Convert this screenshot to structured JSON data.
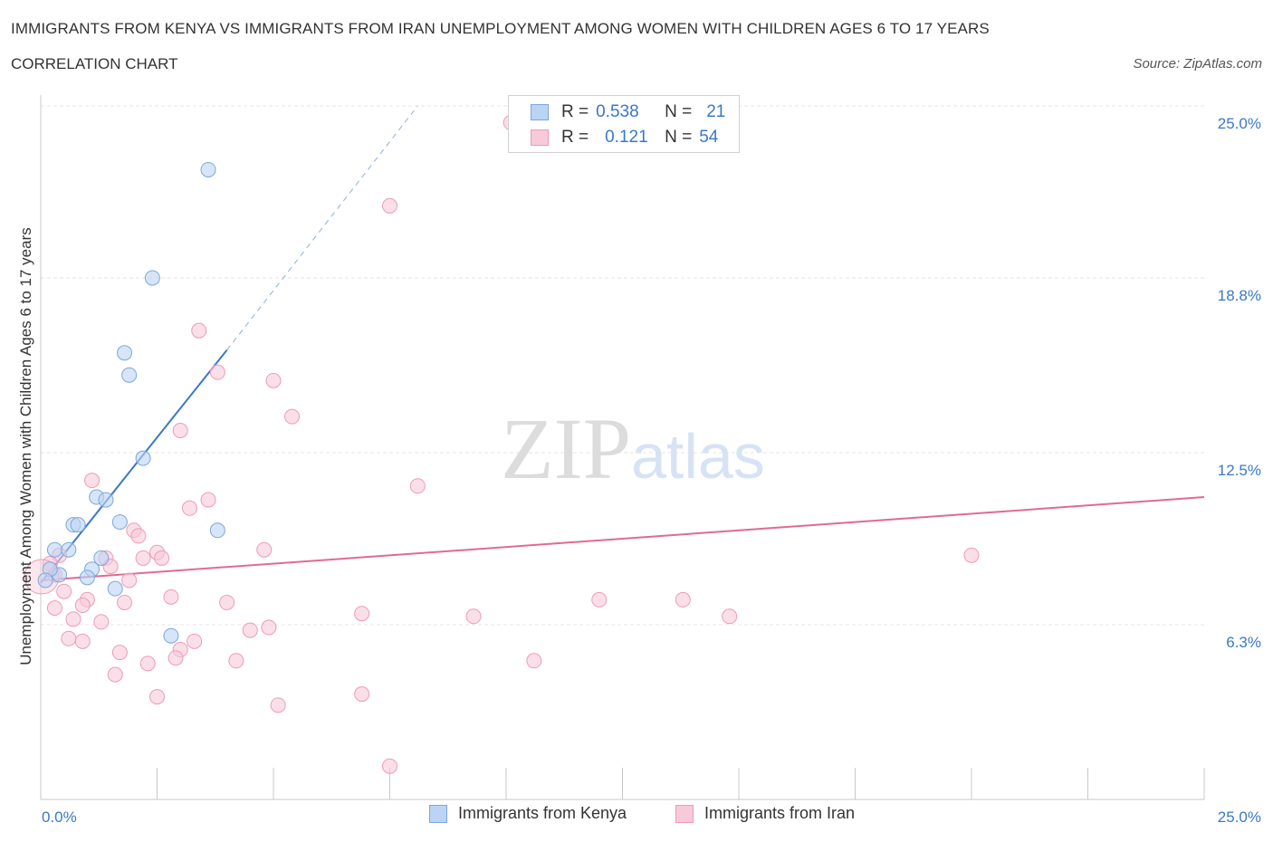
{
  "title": "IMMIGRANTS FROM KENYA VS IMMIGRANTS FROM IRAN UNEMPLOYMENT AMONG WOMEN WITH CHILDREN AGES 6 TO 17 YEARS",
  "subtitle": "CORRELATION CHART",
  "source": "Source: ZipAtlas.com",
  "watermark": {
    "zip": "ZIP",
    "atlas": "atlas"
  },
  "legend": {
    "kenya": {
      "r_label": "R =",
      "r_value": "0.538",
      "n_label": "N =",
      "n_value": "21"
    },
    "iran": {
      "r_label": "R =",
      "r_value": "0.121",
      "n_label": "N =",
      "n_value": "54"
    }
  },
  "colors": {
    "kenya_fill": "#bcd4f3",
    "kenya_stroke": "#7aa7e0",
    "kenya_line": "#3a78c9",
    "iran_fill": "#f8c9d8",
    "iran_stroke": "#ee9bb6",
    "iran_line": "#e06a94",
    "grid": "#e6e6e6",
    "axis_text": "#3a78c9"
  },
  "chart_data": {
    "type": "scatter",
    "title": "IMMIGRANTS FROM KENYA VS IMMIGRANTS FROM IRAN UNEMPLOYMENT AMONG WOMEN WITH CHILDREN AGES 6 TO 17 YEARS",
    "xlabel": "",
    "ylabel": "Unemployment Among Women with Children Ages 6 to 17 years",
    "xlim": [
      0,
      25
    ],
    "ylim": [
      0,
      25
    ],
    "x_tick_labels": [
      "0.0%",
      "25.0%"
    ],
    "y_ticks": [
      6.3,
      12.5,
      18.8,
      25.0
    ],
    "y_tick_labels": [
      "6.3%",
      "12.5%",
      "18.8%",
      "25.0%"
    ],
    "legend_position": "top-center",
    "series": [
      {
        "name": "Immigrants from Kenya",
        "r": 0.538,
        "n": 21,
        "trend": {
          "x0": 0.0,
          "y0": 7.8,
          "x1": 4.0,
          "y1": 16.2,
          "dash_to_x": 8.1,
          "dash_to_y": 25.0
        },
        "points": [
          [
            3.6,
            22.7
          ],
          [
            2.4,
            18.8
          ],
          [
            1.8,
            16.1
          ],
          [
            1.9,
            15.3
          ],
          [
            2.2,
            12.3
          ],
          [
            1.2,
            10.9
          ],
          [
            1.4,
            10.8
          ],
          [
            0.7,
            9.9
          ],
          [
            0.8,
            9.9
          ],
          [
            1.7,
            10.0
          ],
          [
            3.8,
            9.7
          ],
          [
            0.3,
            9.0
          ],
          [
            0.6,
            9.0
          ],
          [
            1.3,
            8.7
          ],
          [
            1.1,
            8.3
          ],
          [
            0.4,
            8.1
          ],
          [
            1.0,
            8.0
          ],
          [
            0.2,
            8.3
          ],
          [
            0.1,
            7.9
          ],
          [
            1.6,
            7.6
          ],
          [
            2.8,
            5.9
          ]
        ]
      },
      {
        "name": "Immigrants from Iran",
        "r": 0.121,
        "n": 54,
        "trend": {
          "x0": 0.0,
          "y0": 7.9,
          "x1": 25.0,
          "y1": 10.9
        },
        "points": [
          [
            10.1,
            24.4
          ],
          [
            7.5,
            21.4
          ],
          [
            3.4,
            16.9
          ],
          [
            3.8,
            15.4
          ],
          [
            5.0,
            15.1
          ],
          [
            5.4,
            13.8
          ],
          [
            3.0,
            13.3
          ],
          [
            8.1,
            11.3
          ],
          [
            1.1,
            11.5
          ],
          [
            3.6,
            10.8
          ],
          [
            3.2,
            10.5
          ],
          [
            2.0,
            9.7
          ],
          [
            2.1,
            9.5
          ],
          [
            4.8,
            9.0
          ],
          [
            2.5,
            8.9
          ],
          [
            2.6,
            8.7
          ],
          [
            2.2,
            8.7
          ],
          [
            1.4,
            8.7
          ],
          [
            1.5,
            8.4
          ],
          [
            0.4,
            8.8
          ],
          [
            0.2,
            8.5
          ],
          [
            0.3,
            8.1
          ],
          [
            1.9,
            7.9
          ],
          [
            0.5,
            7.5
          ],
          [
            1.0,
            7.2
          ],
          [
            0.9,
            7.0
          ],
          [
            1.8,
            7.1
          ],
          [
            2.8,
            7.3
          ],
          [
            4.0,
            7.1
          ],
          [
            0.3,
            6.9
          ],
          [
            0.7,
            6.5
          ],
          [
            1.3,
            6.4
          ],
          [
            6.9,
            6.7
          ],
          [
            9.3,
            6.6
          ],
          [
            12.0,
            7.2
          ],
          [
            13.8,
            7.2
          ],
          [
            14.8,
            6.6
          ],
          [
            20.0,
            8.8
          ],
          [
            4.5,
            6.1
          ],
          [
            4.9,
            6.2
          ],
          [
            0.6,
            5.8
          ],
          [
            0.9,
            5.7
          ],
          [
            3.3,
            5.7
          ],
          [
            3.0,
            5.4
          ],
          [
            1.7,
            5.3
          ],
          [
            2.9,
            5.1
          ],
          [
            4.2,
            5.0
          ],
          [
            2.3,
            4.9
          ],
          [
            10.6,
            5.0
          ],
          [
            1.6,
            4.5
          ],
          [
            2.5,
            3.7
          ],
          [
            6.9,
            3.8
          ],
          [
            5.1,
            3.4
          ],
          [
            7.5,
            1.2
          ]
        ]
      }
    ]
  }
}
